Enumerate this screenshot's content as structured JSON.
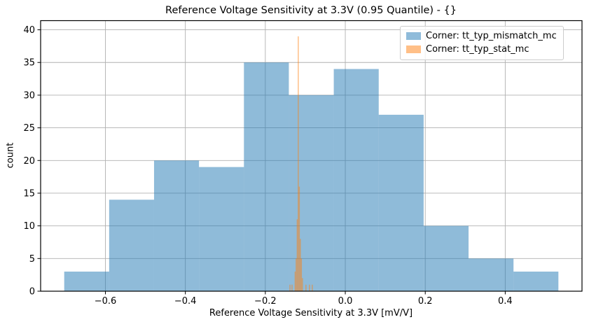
{
  "chart_data": {
    "type": "bar",
    "subtype": "histogram",
    "title": "Reference Voltage Sensitivity at 3.3V (0.95 Quantile) - {}",
    "xlabel": "Reference Voltage Sensitivity at 3.3V [mV/V]",
    "ylabel": "count",
    "xlim": [
      -0.762,
      0.592
    ],
    "ylim": [
      0,
      41.4
    ],
    "grid": true,
    "grid_color": "#b0b0b0",
    "axes_edge_color": "#000000",
    "legend_position": "upper right",
    "xticks": [
      {
        "value": -0.6,
        "label": "−0.6"
      },
      {
        "value": -0.4,
        "label": "−0.4"
      },
      {
        "value": -0.2,
        "label": "−0.2"
      },
      {
        "value": 0.0,
        "label": "0.0"
      },
      {
        "value": 0.2,
        "label": "0.2"
      },
      {
        "value": 0.4,
        "label": "0.4"
      }
    ],
    "yticks": [
      {
        "value": 0,
        "label": "0"
      },
      {
        "value": 5,
        "label": "5"
      },
      {
        "value": 10,
        "label": "10"
      },
      {
        "value": 15,
        "label": "15"
      },
      {
        "value": 20,
        "label": "20"
      },
      {
        "value": 25,
        "label": "25"
      },
      {
        "value": 30,
        "label": "30"
      },
      {
        "value": 35,
        "label": "35"
      },
      {
        "value": 40,
        "label": "40"
      }
    ],
    "series": [
      {
        "name": "tt_typ_mismatch_mc",
        "label": "Corner: tt_typ_mismatch_mc",
        "color": "#1f77b4",
        "alpha": 0.5,
        "bin_edges": [
          -0.703,
          -0.5906,
          -0.4783,
          -0.3659,
          -0.2535,
          -0.1412,
          -0.0288,
          0.0836,
          0.1959,
          0.3083,
          0.4207,
          0.533
        ],
        "counts": [
          3,
          14,
          20,
          19,
          35,
          30,
          34,
          27,
          10,
          5,
          3
        ]
      },
      {
        "name": "tt_typ_stat_mc",
        "label": "Corner: tt_typ_stat_mc",
        "color": "#ff7f0e",
        "alpha": 0.5,
        "bin_width": 0.0026,
        "bins": [
          {
            "left": -0.1397,
            "count": 1
          },
          {
            "left": -0.1345,
            "count": 1
          },
          {
            "left": -0.1267,
            "count": 3
          },
          {
            "left": -0.1241,
            "count": 5
          },
          {
            "left": -0.1215,
            "count": 11
          },
          {
            "left": -0.1189,
            "count": 39
          },
          {
            "left": -0.1163,
            "count": 16
          },
          {
            "left": -0.1137,
            "count": 8
          },
          {
            "left": -0.1111,
            "count": 5
          },
          {
            "left": -0.1085,
            "count": 2
          },
          {
            "left": -0.0997,
            "count": 1
          },
          {
            "left": -0.0909,
            "count": 1
          },
          {
            "left": -0.0839,
            "count": 1
          }
        ]
      }
    ]
  }
}
